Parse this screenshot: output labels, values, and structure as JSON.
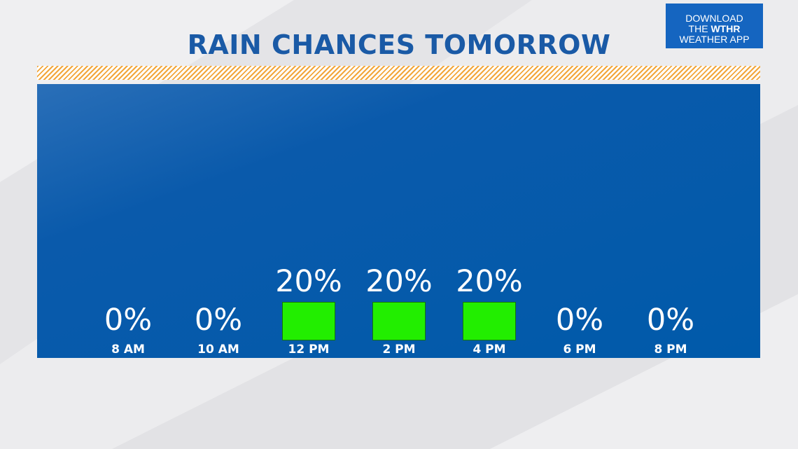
{
  "title": "RAIN CHANCES TOMORROW",
  "badge": {
    "line1": "DOWNLOAD",
    "line2_prefix": "THE ",
    "line2_brand": "WTHR",
    "line3": "WEATHER APP"
  },
  "colors": {
    "title": "#1a5aa6",
    "panel": "#005aaa",
    "bar": "#22ee00",
    "stripe": "#f2a63a",
    "badge": "#1565c0"
  },
  "chart_data": {
    "type": "bar",
    "title": "RAIN CHANCES TOMORROW",
    "categories": [
      "8 AM",
      "10 AM",
      "12 PM",
      "2 PM",
      "4 PM",
      "6 PM",
      "8 PM"
    ],
    "values": [
      0,
      0,
      20,
      20,
      20,
      0,
      0
    ],
    "value_labels": [
      "0%",
      "0%",
      "20%",
      "20%",
      "20%",
      "0%",
      "0%"
    ],
    "unit": "%",
    "ylim": [
      0,
      100
    ],
    "grid": false
  }
}
